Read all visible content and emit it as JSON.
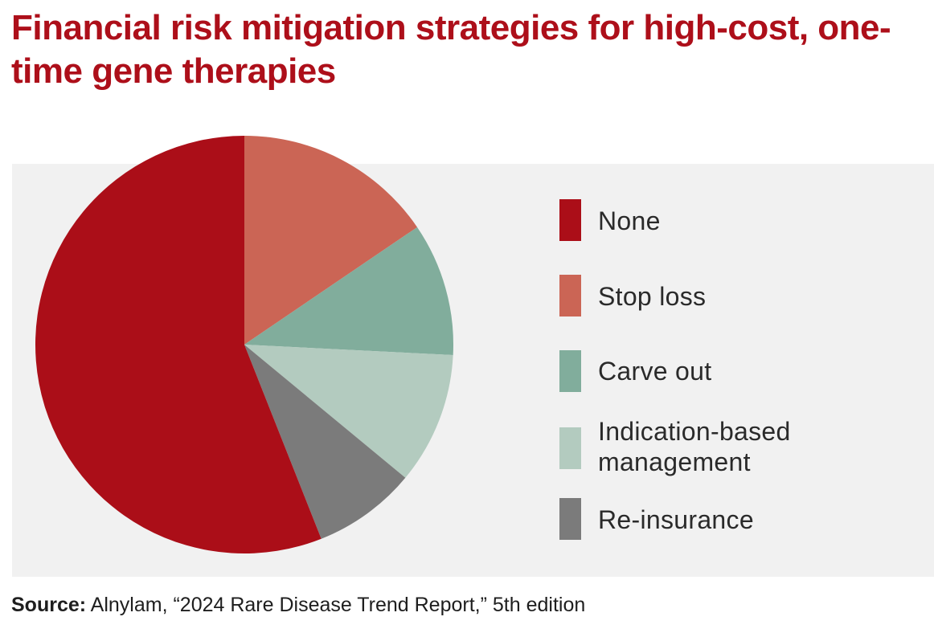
{
  "title": "Financial risk mitigation strategies for high-cost, one-time gene therapies",
  "source": {
    "label": "Source:",
    "text": " Alnylam, “2024 Rare Disease Trend Report,” 5th edition"
  },
  "colors": {
    "title": "#ad0f1a",
    "panel_background": "#f1f1f1"
  },
  "chart_data": {
    "type": "pie",
    "title": "Financial risk mitigation strategies for high-cost, one-time gene therapies",
    "legend_position": "right",
    "start_angle": "12 o'clock",
    "direction": "clockwise",
    "slices": [
      {
        "label": "Stop loss",
        "value": 15.5,
        "color": "#cb6555"
      },
      {
        "label": "Carve out",
        "value": 10.3,
        "color": "#81ad9c"
      },
      {
        "label": "Indication-based management",
        "value": 10.2,
        "color": "#b3cbbf"
      },
      {
        "label": "Re-insurance",
        "value": 8.0,
        "color": "#7b7b7b"
      },
      {
        "label": "None",
        "value": 56.0,
        "color": "#ab0e18"
      }
    ],
    "legend_order": [
      "None",
      "Stop loss",
      "Carve out",
      "Indication-based management",
      "Re-insurance"
    ]
  }
}
